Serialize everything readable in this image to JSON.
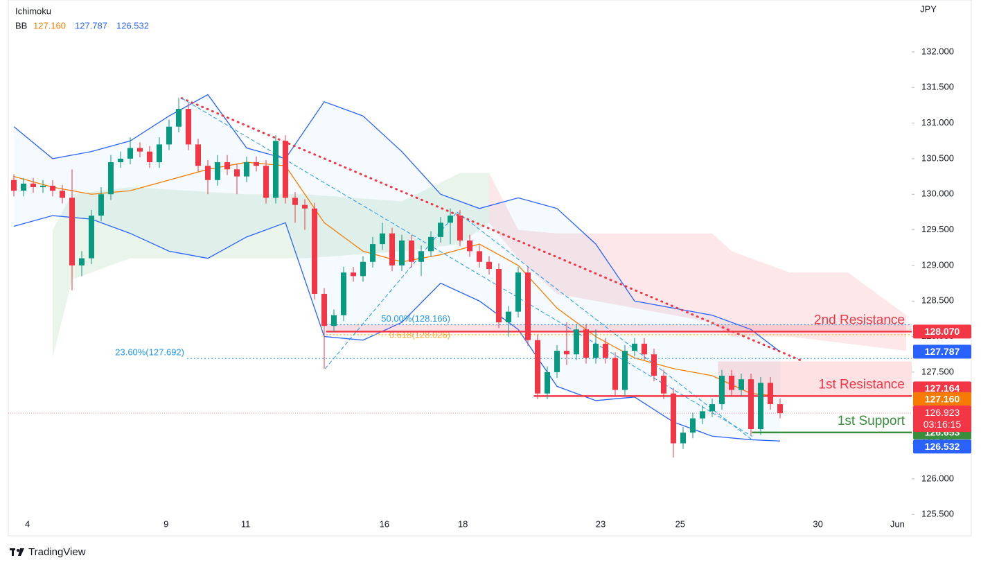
{
  "chart_data": {
    "type": "candlestick",
    "indicator_name": "Ichimoku",
    "bb_name": "BB",
    "bb_values": [
      {
        "value": 127.16,
        "label": "127.160",
        "color": "#f57c00"
      },
      {
        "value": 127.787,
        "label": "127.787",
        "color": "#2962ff"
      },
      {
        "value": 126.532,
        "label": "126.532",
        "color": "#2962ff"
      }
    ],
    "currency": "JPY",
    "brand": "TradingView",
    "up_color": "#089981",
    "down_color": "#f23645",
    "ylim": [
      125.2,
      132.73
    ],
    "yticks": [
      {
        "value": 125.5,
        "label": "125.500"
      },
      {
        "value": 126,
        "label": "126.000"
      },
      {
        "value": 126.5,
        "label": "126.500"
      },
      {
        "value": 127,
        "label": "127.000"
      },
      {
        "value": 127.5,
        "label": "127.500"
      },
      {
        "value": 128,
        "label": "128.000"
      },
      {
        "value": 128.5,
        "label": "128.500"
      },
      {
        "value": 129,
        "label": "129.000"
      },
      {
        "value": 129.5,
        "label": "129.500"
      },
      {
        "value": 130,
        "label": "130.000"
      },
      {
        "value": 130.5,
        "label": "130.500"
      },
      {
        "value": 131,
        "label": "131.000"
      },
      {
        "value": 131.5,
        "label": "131.500"
      },
      {
        "value": 132,
        "label": "132.000"
      }
    ],
    "xaxis": {
      "labels": [
        "4",
        "9",
        "11",
        "16",
        "18",
        "23",
        "25",
        "30",
        "Jun"
      ],
      "positions": [
        1.4,
        15.7,
        23.9,
        38.2,
        46.3,
        60.5,
        68.7,
        82.9,
        91.1
      ]
    },
    "candles": {
      "open": [
        130.2,
        130.05,
        130.15,
        130.1,
        130.12,
        130.05,
        129.95,
        129.0,
        129.1,
        129.7,
        130.0,
        130.45,
        130.5,
        130.65,
        130.6,
        130.45,
        130.7,
        130.95,
        131.2,
        130.7,
        130.4,
        130.2,
        130.45,
        130.35,
        130.25,
        130.45,
        130.4,
        129.95,
        130.75,
        129.95,
        129.85,
        129.8,
        128.6,
        128.15,
        128.3,
        128.9,
        128.85,
        129.05,
        129.3,
        129.45,
        129.0,
        129.35,
        129.05,
        129.2,
        129.4,
        129.6,
        129.7,
        129.35,
        129.2,
        129.05,
        128.95,
        128.2,
        128.35,
        128.9,
        127.95,
        127.2,
        127.5,
        127.8,
        127.75,
        128.1,
        127.7,
        127.9,
        127.7,
        127.25,
        127.8,
        127.9,
        127.75,
        127.45,
        127.2,
        126.5,
        126.65,
        126.85,
        126.95,
        127.05,
        127.45,
        127.25,
        127.4,
        126.7,
        127.35,
        127.05
      ],
      "high": [
        130.28,
        130.23,
        130.23,
        130.2,
        130.2,
        130.13,
        130.35,
        129.2,
        129.78,
        130.1,
        130.55,
        130.6,
        130.8,
        130.73,
        130.68,
        130.8,
        131.05,
        131.35,
        131.28,
        130.78,
        130.48,
        130.55,
        130.55,
        130.43,
        130.53,
        130.53,
        130.48,
        130.83,
        130.83,
        130.03,
        129.93,
        129.88,
        128.68,
        128.38,
        128.98,
        128.98,
        129.13,
        129.4,
        129.6,
        129.53,
        129.43,
        129.43,
        129.28,
        129.48,
        129.68,
        129.8,
        129.78,
        129.43,
        129.28,
        129.13,
        129.03,
        128.43,
        128.98,
        128.98,
        128.03,
        127.58,
        127.88,
        128.2,
        128.18,
        128.18,
        128.1,
        127.98,
        127.78,
        127.88,
        127.98,
        127.98,
        127.83,
        127.53,
        127.28,
        126.73,
        126.93,
        127.03,
        127.13,
        127.53,
        127.53,
        127.48,
        127.48,
        127.43,
        127.43,
        127.13
      ],
      "low": [
        129.97,
        129.97,
        130.02,
        130.02,
        129.97,
        129.87,
        128.65,
        128.85,
        129.02,
        129.62,
        129.92,
        130.37,
        130.42,
        130.52,
        130.37,
        130.37,
        130.62,
        130.87,
        130.62,
        130.32,
        130.0,
        130.12,
        130.27,
        130.0,
        130.17,
        130.32,
        129.87,
        129.87,
        129.87,
        129.6,
        129.5,
        128.52,
        127.55,
        128.07,
        128.22,
        128.77,
        128.77,
        128.97,
        129.22,
        128.92,
        128.92,
        128.97,
        128.85,
        129.12,
        129.32,
        129.3,
        129.27,
        129.12,
        128.97,
        128.87,
        128.12,
        128.0,
        128.27,
        127.87,
        127.12,
        127.12,
        127.42,
        127.6,
        127.67,
        127.62,
        127.62,
        127.62,
        127.17,
        127.17,
        127.72,
        127.67,
        127.37,
        127.12,
        126.3,
        126.42,
        126.57,
        126.77,
        126.87,
        126.97,
        127.17,
        127.17,
        126.62,
        126.62,
        126.97,
        126.85
      ],
      "close": [
        130.05,
        130.15,
        130.1,
        130.12,
        130.05,
        129.95,
        129.0,
        129.1,
        129.7,
        130.0,
        130.45,
        130.5,
        130.65,
        130.6,
        130.45,
        130.7,
        130.95,
        131.2,
        130.7,
        130.4,
        130.2,
        130.45,
        130.35,
        130.25,
        130.45,
        130.4,
        129.95,
        130.75,
        129.95,
        129.85,
        129.8,
        128.6,
        128.15,
        128.3,
        128.9,
        128.85,
        129.05,
        129.3,
        129.45,
        129.0,
        129.35,
        129.05,
        129.2,
        129.4,
        129.6,
        129.7,
        129.35,
        129.2,
        129.05,
        128.95,
        128.2,
        128.35,
        128.9,
        127.95,
        127.2,
        127.5,
        127.8,
        127.75,
        128.1,
        127.7,
        127.9,
        127.7,
        127.25,
        127.8,
        127.9,
        127.75,
        127.45,
        127.2,
        126.5,
        126.65,
        126.85,
        126.95,
        127.05,
        127.45,
        127.25,
        127.4,
        126.7,
        127.35,
        127.05,
        126.923
      ]
    },
    "bollinger": {
      "index": [
        0,
        4,
        8,
        12,
        16,
        20,
        24,
        28,
        32,
        36,
        40,
        44,
        48,
        52,
        56,
        60,
        64,
        68,
        72,
        76,
        79
      ],
      "upper": [
        130.95,
        130.5,
        130.6,
        130.75,
        131.1,
        131.4,
        130.65,
        130.5,
        131.3,
        131.1,
        130.6,
        130.0,
        129.8,
        129.95,
        129.8,
        129.3,
        128.5,
        128.4,
        128.3,
        128.1,
        127.787
      ],
      "middle": [
        130.25,
        130.1,
        130.0,
        130.05,
        130.2,
        130.35,
        130.45,
        130.4,
        129.6,
        129.2,
        129.05,
        129.15,
        129.3,
        129.0,
        128.4,
        128.0,
        127.7,
        127.55,
        127.45,
        127.2,
        127.16
      ],
      "lower": [
        129.55,
        129.7,
        129.65,
        129.45,
        129.2,
        129.1,
        129.4,
        129.6,
        128.0,
        127.95,
        128.2,
        128.75,
        128.5,
        128.1,
        127.3,
        127.1,
        127.15,
        126.8,
        126.6,
        126.55,
        126.532
      ],
      "band_color": "#2962ff",
      "middle_color": "#f57c00"
    },
    "cloud": [
      {
        "color": "#4caf50",
        "index": [
          4,
          6,
          12,
          24,
          30,
          40,
          46,
          49
        ],
        "top": [
          129.5,
          130.0,
          130.1,
          130.0,
          130.0,
          129.9,
          130.3,
          130.3
        ],
        "bottom": [
          127.7,
          128.8,
          129.1,
          129.1,
          129.1,
          129.2,
          129.3,
          129.6
        ]
      },
      {
        "color": "#f23645",
        "index": [
          49,
          52,
          56,
          72,
          74,
          80,
          86,
          92
        ],
        "top": [
          130.3,
          129.5,
          129.45,
          129.45,
          129.2,
          128.9,
          128.9,
          128.3
        ],
        "bottom": [
          129.6,
          129.1,
          128.6,
          128.2,
          128.0,
          128.0,
          127.9,
          127.8
        ]
      }
    ],
    "zones": [
      {
        "start": 32.2,
        "top": 128.17,
        "bottom": 128.07,
        "color": "#f23645"
      },
      {
        "start": 72.6,
        "top": 127.65,
        "bottom": 127.164,
        "color": "#f23645"
      }
    ],
    "levels": [
      {
        "name": "2nd Resistance",
        "value": 128.07,
        "start": 32.2,
        "color": "#f23645"
      },
      {
        "name": "1st Resistance",
        "value": 127.164,
        "start": 53.6,
        "color": "#f23645"
      },
      {
        "name": "1st Support",
        "value": 126.653,
        "start": 76.1,
        "color": "#388e3c"
      }
    ],
    "fib_levels": [
      {
        "label": "50.00%(128.166)",
        "value": 128.166,
        "start": 32.2,
        "color": "#2196f3"
      },
      {
        "label": "0.618(128.026)",
        "value": 128.026,
        "start": 32.2,
        "color": "#ffa726"
      },
      {
        "label": "23.60%(127.692)",
        "value": 127.692,
        "start": 32.2,
        "color": "#2196f3"
      }
    ],
    "trendlines": [
      {
        "x": [
          17.3,
          81.4
        ],
        "y": [
          131.35,
          127.65
        ],
        "color": "#f23645",
        "style": "dotted"
      },
      {
        "x": [
          17.3,
          76.1
        ],
        "y": [
          131.35,
          126.6
        ],
        "color": "#2196f3",
        "style": "dashed"
      },
      {
        "x": [
          32.1,
          45.7
        ],
        "y": [
          127.55,
          129.75
        ],
        "color": "#2196f3",
        "style": "dashed"
      },
      {
        "x": [
          45.7,
          76.1
        ],
        "y": [
          129.75,
          126.55
        ],
        "color": "#2196f3",
        "style": "dashed"
      }
    ],
    "last_price": {
      "value": 126.923,
      "label": "126.923",
      "countdown": "03:16:15",
      "color": "#f23645"
    },
    "price_tags": [
      {
        "value": 128.07,
        "label": "128.070",
        "color": "#f23645"
      },
      {
        "value": 127.787,
        "label": "127.787",
        "color": "#2962ff"
      },
      {
        "value": 127.164,
        "label": "127.164",
        "color": "#f23645"
      },
      {
        "value": 127.16,
        "label": "127.160",
        "color": "#f57c00"
      },
      {
        "value": 126.653,
        "label": "126.653",
        "color": "#388e3c"
      },
      {
        "value": 126.532,
        "label": "126.532",
        "color": "#2962ff"
      }
    ]
  }
}
